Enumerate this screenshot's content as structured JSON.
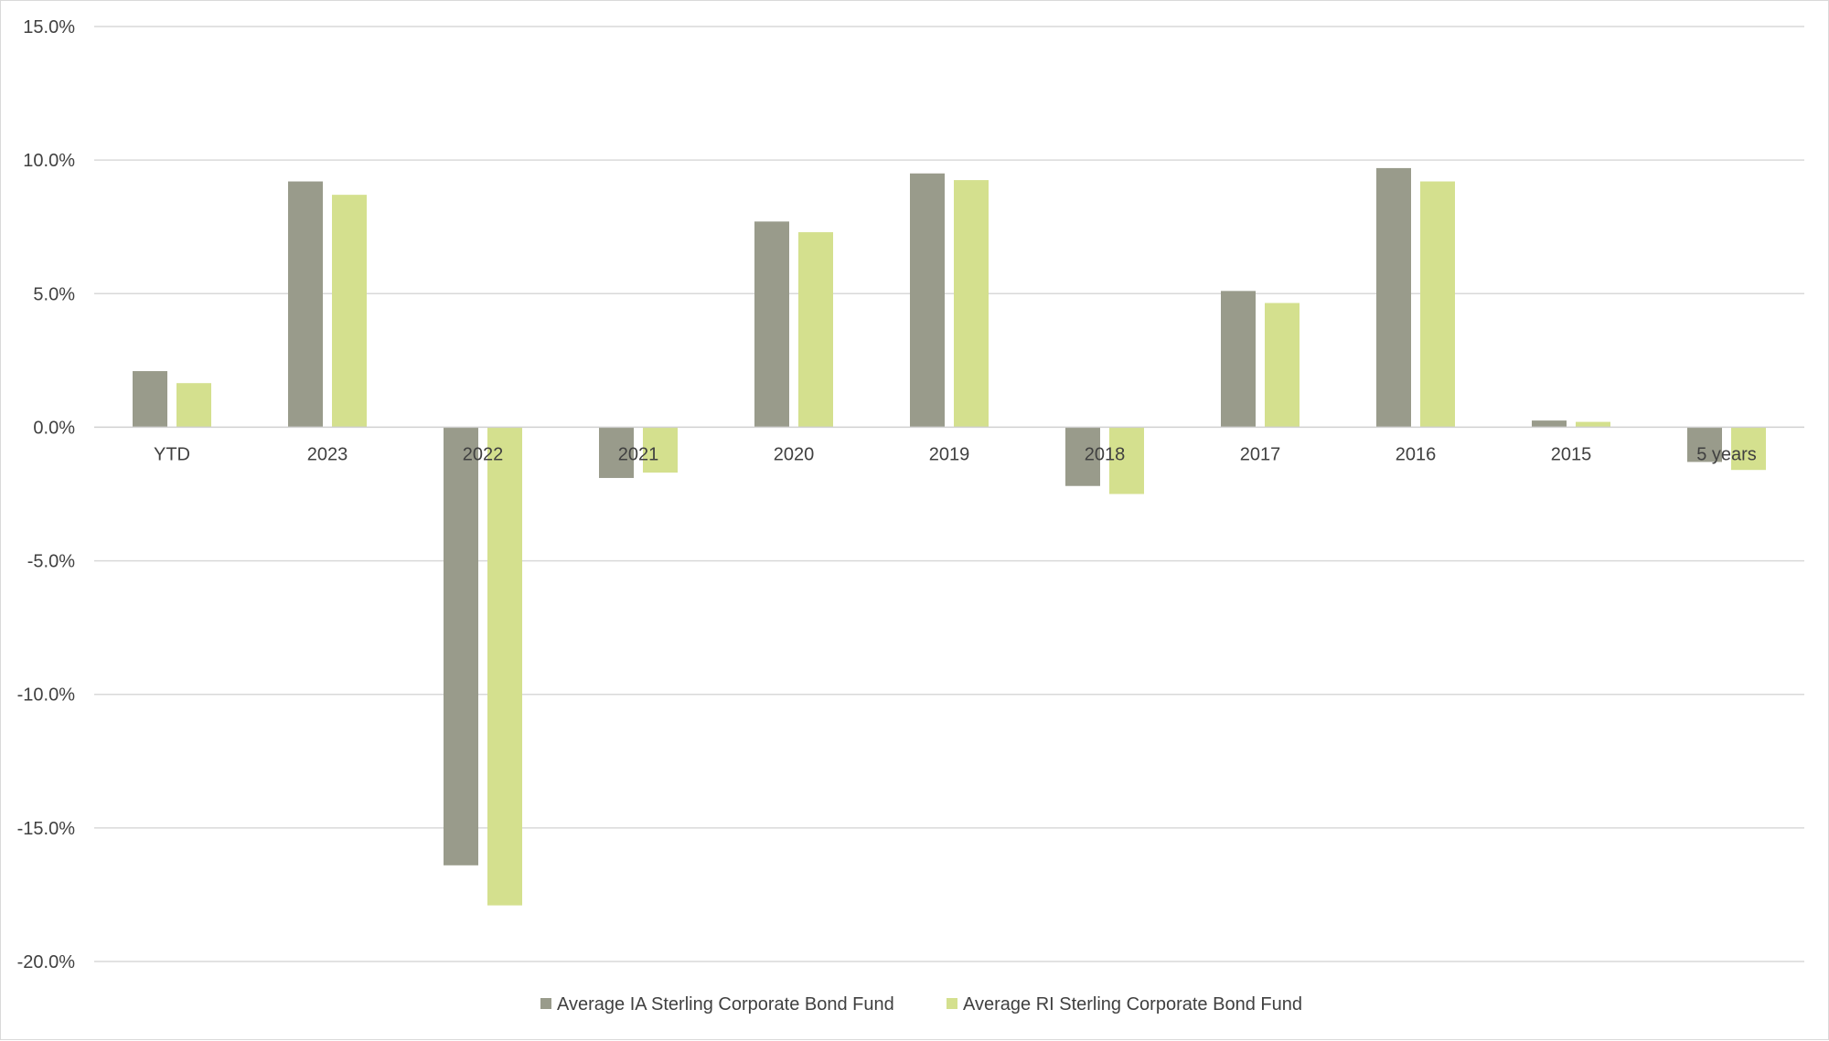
{
  "chart_data": {
    "type": "bar",
    "categories": [
      "YTD",
      "2023",
      "2022",
      "2021",
      "2020",
      "2019",
      "2018",
      "2017",
      "2016",
      "2015",
      "5 years"
    ],
    "series": [
      {
        "name": "Average IA Sterling Corporate Bond Fund",
        "color": "#999b8b",
        "values": [
          2.1,
          9.2,
          -16.4,
          -1.9,
          7.7,
          9.5,
          -2.2,
          5.1,
          9.7,
          0.25,
          -1.3
        ]
      },
      {
        "name": "Average RI Sterling Corporate Bond Fund",
        "color": "#d4e08e",
        "values": [
          1.65,
          8.7,
          -17.9,
          -1.7,
          7.3,
          9.25,
          -2.5,
          4.65,
          9.2,
          0.2,
          -1.6
        ]
      }
    ],
    "ylim": [
      -20,
      15
    ],
    "yticks": [
      15,
      10,
      5,
      0,
      -5,
      -10,
      -15,
      -20
    ],
    "ytick_labels": [
      "15.0%",
      "10.0%",
      "5.0%",
      "0.0%",
      "-5.0%",
      "-10.0%",
      "-15.0%",
      "-20.0%"
    ],
    "grid": true,
    "legend_position": "bottom",
    "title": "",
    "xlabel": "",
    "ylabel": ""
  }
}
